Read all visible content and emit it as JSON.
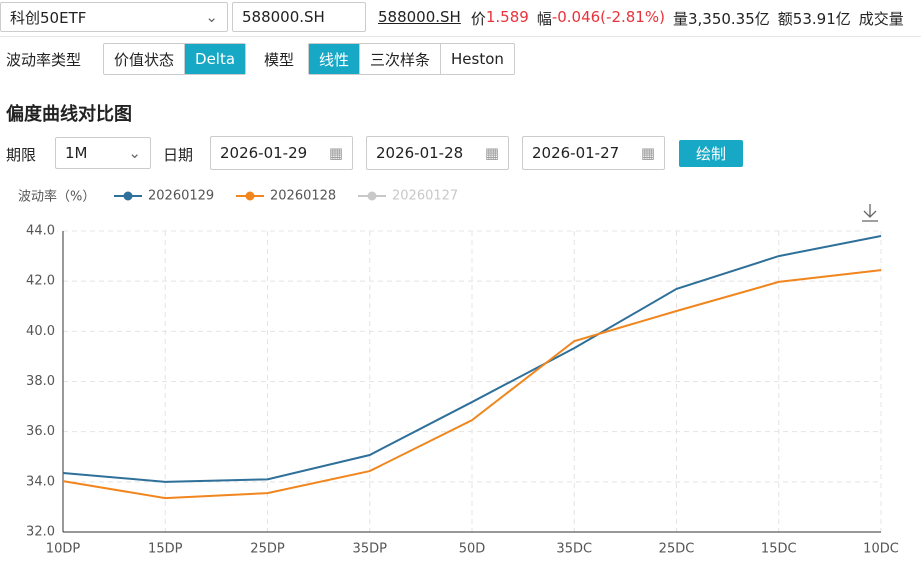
{
  "header": {
    "select": "科创50ETF",
    "code_input": "588000.SH",
    "link": "588000.SH",
    "quote": [
      {
        "label": "价",
        "value": "1.589",
        "color": "#e8333c"
      },
      {
        "label": "幅",
        "value": "-0.046(-2.81%)",
        "color": "#e8333c"
      },
      {
        "label": "量",
        "value": "3,350.35亿",
        "color": "#222"
      },
      {
        "label": "额",
        "value": "53.91亿",
        "color": "#222"
      },
      {
        "label": "成交量",
        "value": "",
        "color": "#222"
      }
    ]
  },
  "controls": {
    "vol_type_label": "波动率类型",
    "vol_type_options": [
      "价值状态",
      "Delta"
    ],
    "vol_type_active": 1,
    "model_label": "模型",
    "model_options": [
      "线性",
      "三次样条",
      "Heston"
    ],
    "model_active": 0
  },
  "section_title": "偏度曲线对比图",
  "query": {
    "term_label": "期限",
    "term": "1M",
    "date_label": "日期",
    "dates": [
      "2026-01-29",
      "2026-01-28",
      "2026-01-27"
    ],
    "button": "绘制"
  },
  "chart_data": {
    "type": "line",
    "y_label": "波动率（%）",
    "categories": [
      "10DP",
      "15DP",
      "25DP",
      "35DP",
      "50D",
      "35DC",
      "25DC",
      "15DC",
      "10DC"
    ],
    "series": [
      {
        "name": "20260129",
        "color": "#2e7099",
        "visible": true,
        "values": [
          34.35,
          34.0,
          34.1,
          35.07,
          37.18,
          39.33,
          41.69,
          43.0,
          43.8
        ]
      },
      {
        "name": "20260128",
        "color": "#f0861d",
        "visible": true,
        "values": [
          34.03,
          33.35,
          33.55,
          34.43,
          36.46,
          39.61,
          40.81,
          41.97,
          42.44
        ]
      },
      {
        "name": "20260127",
        "color": "#c8c8c8",
        "visible": false
      }
    ],
    "ylim": [
      32,
      44
    ],
    "yticks": [
      {
        "value": 32,
        "label": "32.0"
      },
      {
        "value": 34,
        "label": "34.0"
      },
      {
        "value": 36,
        "label": "36.0"
      },
      {
        "value": 38,
        "label": "38.0"
      },
      {
        "value": 40,
        "label": "40.0"
      },
      {
        "value": 42,
        "label": "42.0"
      },
      {
        "value": 44,
        "label": "44.0"
      }
    ],
    "grid": true
  }
}
